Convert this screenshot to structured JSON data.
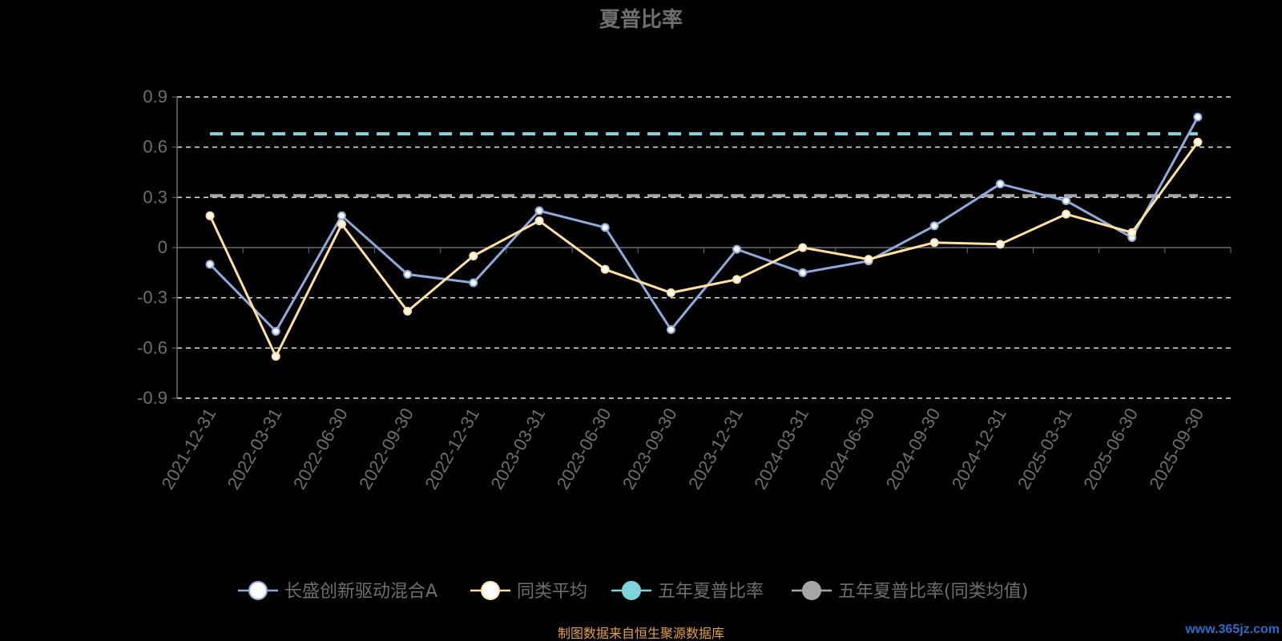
{
  "chart_data": {
    "type": "line",
    "title": "夏普比率",
    "categories": [
      "2021-12-31",
      "2022-03-31",
      "2022-06-30",
      "2022-09-30",
      "2022-12-31",
      "2023-03-31",
      "2023-06-30",
      "2023-09-30",
      "2023-12-31",
      "2024-03-31",
      "2024-06-30",
      "2024-09-30",
      "2024-12-31",
      "2025-03-31",
      "2025-06-30",
      "2025-09-30"
    ],
    "ylim": [
      -0.9,
      0.9
    ],
    "yticks": [
      "0.9",
      "0.6",
      "0.3",
      "0",
      "-0.3",
      "-0.6",
      "-0.9"
    ],
    "ytick_values": [
      0.9,
      0.6,
      0.3,
      0,
      -0.3,
      -0.6,
      -0.9
    ],
    "grid": true,
    "legend_position": "bottom",
    "series": [
      {
        "name": "长盛创新驱动混合A",
        "color": "#8ea9dc",
        "marker_fill": "#ffffff",
        "values": [
          -0.1,
          -0.5,
          0.19,
          -0.16,
          -0.21,
          0.22,
          0.12,
          -0.49,
          -0.01,
          -0.15,
          -0.08,
          0.13,
          0.38,
          0.28,
          0.06,
          0.78
        ]
      },
      {
        "name": "同类平均",
        "color": "#ffe0a0",
        "marker_fill": "#ffffff",
        "values": [
          0.19,
          -0.65,
          0.14,
          -0.38,
          -0.05,
          0.16,
          -0.13,
          -0.27,
          -0.19,
          0.0,
          -0.07,
          0.03,
          0.02,
          0.2,
          0.09,
          0.63
        ]
      }
    ],
    "reference_lines": [
      {
        "name": "五年夏普比率",
        "value": 0.68,
        "color": "#7fd4dc"
      },
      {
        "name": "五年夏普比率(同类均值)",
        "value": 0.31,
        "color": "#a6a6a6"
      }
    ]
  },
  "source_text": "制图数据来自恒生聚源数据库",
  "watermark_text": "www.365jz.com"
}
